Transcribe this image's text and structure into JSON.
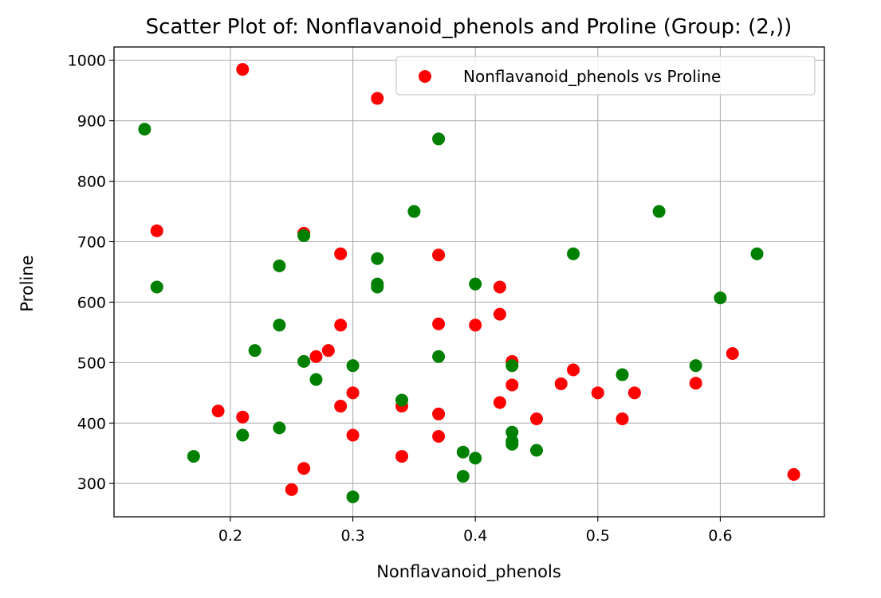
{
  "chart_data": {
    "type": "scatter",
    "title": "Scatter Plot of: Nonflavanoid_phenols and Proline (Group: (2,))",
    "xlabel": "Nonflavanoid_phenols",
    "ylabel": "Proline",
    "xlim": [
      0.105,
      0.685
    ],
    "ylim": [
      245,
      1022
    ],
    "xticks": [
      "0.2",
      "0.3",
      "0.4",
      "0.5",
      "0.6"
    ],
    "yticks": [
      "300",
      "400",
      "500",
      "600",
      "700",
      "800",
      "900",
      "1000"
    ],
    "grid": true,
    "legend_position": "top-right",
    "legend": [
      "Nonflavanoid_phenols vs Proline"
    ],
    "colors": {
      "red": "#ff0000",
      "green": "#008000"
    },
    "series": [
      {
        "name": "Nonflavanoid_phenols vs Proline",
        "color": "#ff0000",
        "points": [
          [
            0.21,
            985
          ],
          [
            0.32,
            937
          ],
          [
            0.14,
            718
          ],
          [
            0.26,
            714
          ],
          [
            0.29,
            680
          ],
          [
            0.37,
            678
          ],
          [
            0.42,
            625
          ],
          [
            0.42,
            580
          ],
          [
            0.37,
            564
          ],
          [
            0.29,
            562
          ],
          [
            0.4,
            562
          ],
          [
            0.28,
            520
          ],
          [
            0.27,
            510
          ],
          [
            0.61,
            515
          ],
          [
            0.43,
            502
          ],
          [
            0.48,
            488
          ],
          [
            0.47,
            465
          ],
          [
            0.43,
            463
          ],
          [
            0.58,
            466
          ],
          [
            0.3,
            450
          ],
          [
            0.5,
            450
          ],
          [
            0.53,
            450
          ],
          [
            0.42,
            434
          ],
          [
            0.29,
            428
          ],
          [
            0.34,
            428
          ],
          [
            0.19,
            420
          ],
          [
            0.37,
            415
          ],
          [
            0.21,
            410
          ],
          [
            0.45,
            407
          ],
          [
            0.52,
            407
          ],
          [
            0.3,
            380
          ],
          [
            0.37,
            378
          ],
          [
            0.34,
            345
          ],
          [
            0.26,
            325
          ],
          [
            0.66,
            315
          ],
          [
            0.25,
            290
          ]
        ]
      },
      {
        "color": "#008000",
        "points": [
          [
            0.13,
            886
          ],
          [
            0.37,
            870
          ],
          [
            0.35,
            750
          ],
          [
            0.55,
            750
          ],
          [
            0.26,
            710
          ],
          [
            0.32,
            672
          ],
          [
            0.48,
            680
          ],
          [
            0.63,
            680
          ],
          [
            0.24,
            660
          ],
          [
            0.32,
            630
          ],
          [
            0.32,
            625
          ],
          [
            0.14,
            625
          ],
          [
            0.4,
            630
          ],
          [
            0.6,
            607
          ],
          [
            0.24,
            562
          ],
          [
            0.22,
            520
          ],
          [
            0.37,
            510
          ],
          [
            0.26,
            502
          ],
          [
            0.3,
            495
          ],
          [
            0.43,
            495
          ],
          [
            0.58,
            495
          ],
          [
            0.27,
            472
          ],
          [
            0.52,
            480
          ],
          [
            0.34,
            438
          ],
          [
            0.24,
            392
          ],
          [
            0.43,
            385
          ],
          [
            0.21,
            380
          ],
          [
            0.43,
            370
          ],
          [
            0.43,
            365
          ],
          [
            0.45,
            355
          ],
          [
            0.39,
            352
          ],
          [
            0.17,
            345
          ],
          [
            0.4,
            342
          ],
          [
            0.39,
            312
          ],
          [
            0.3,
            278
          ]
        ]
      }
    ]
  }
}
